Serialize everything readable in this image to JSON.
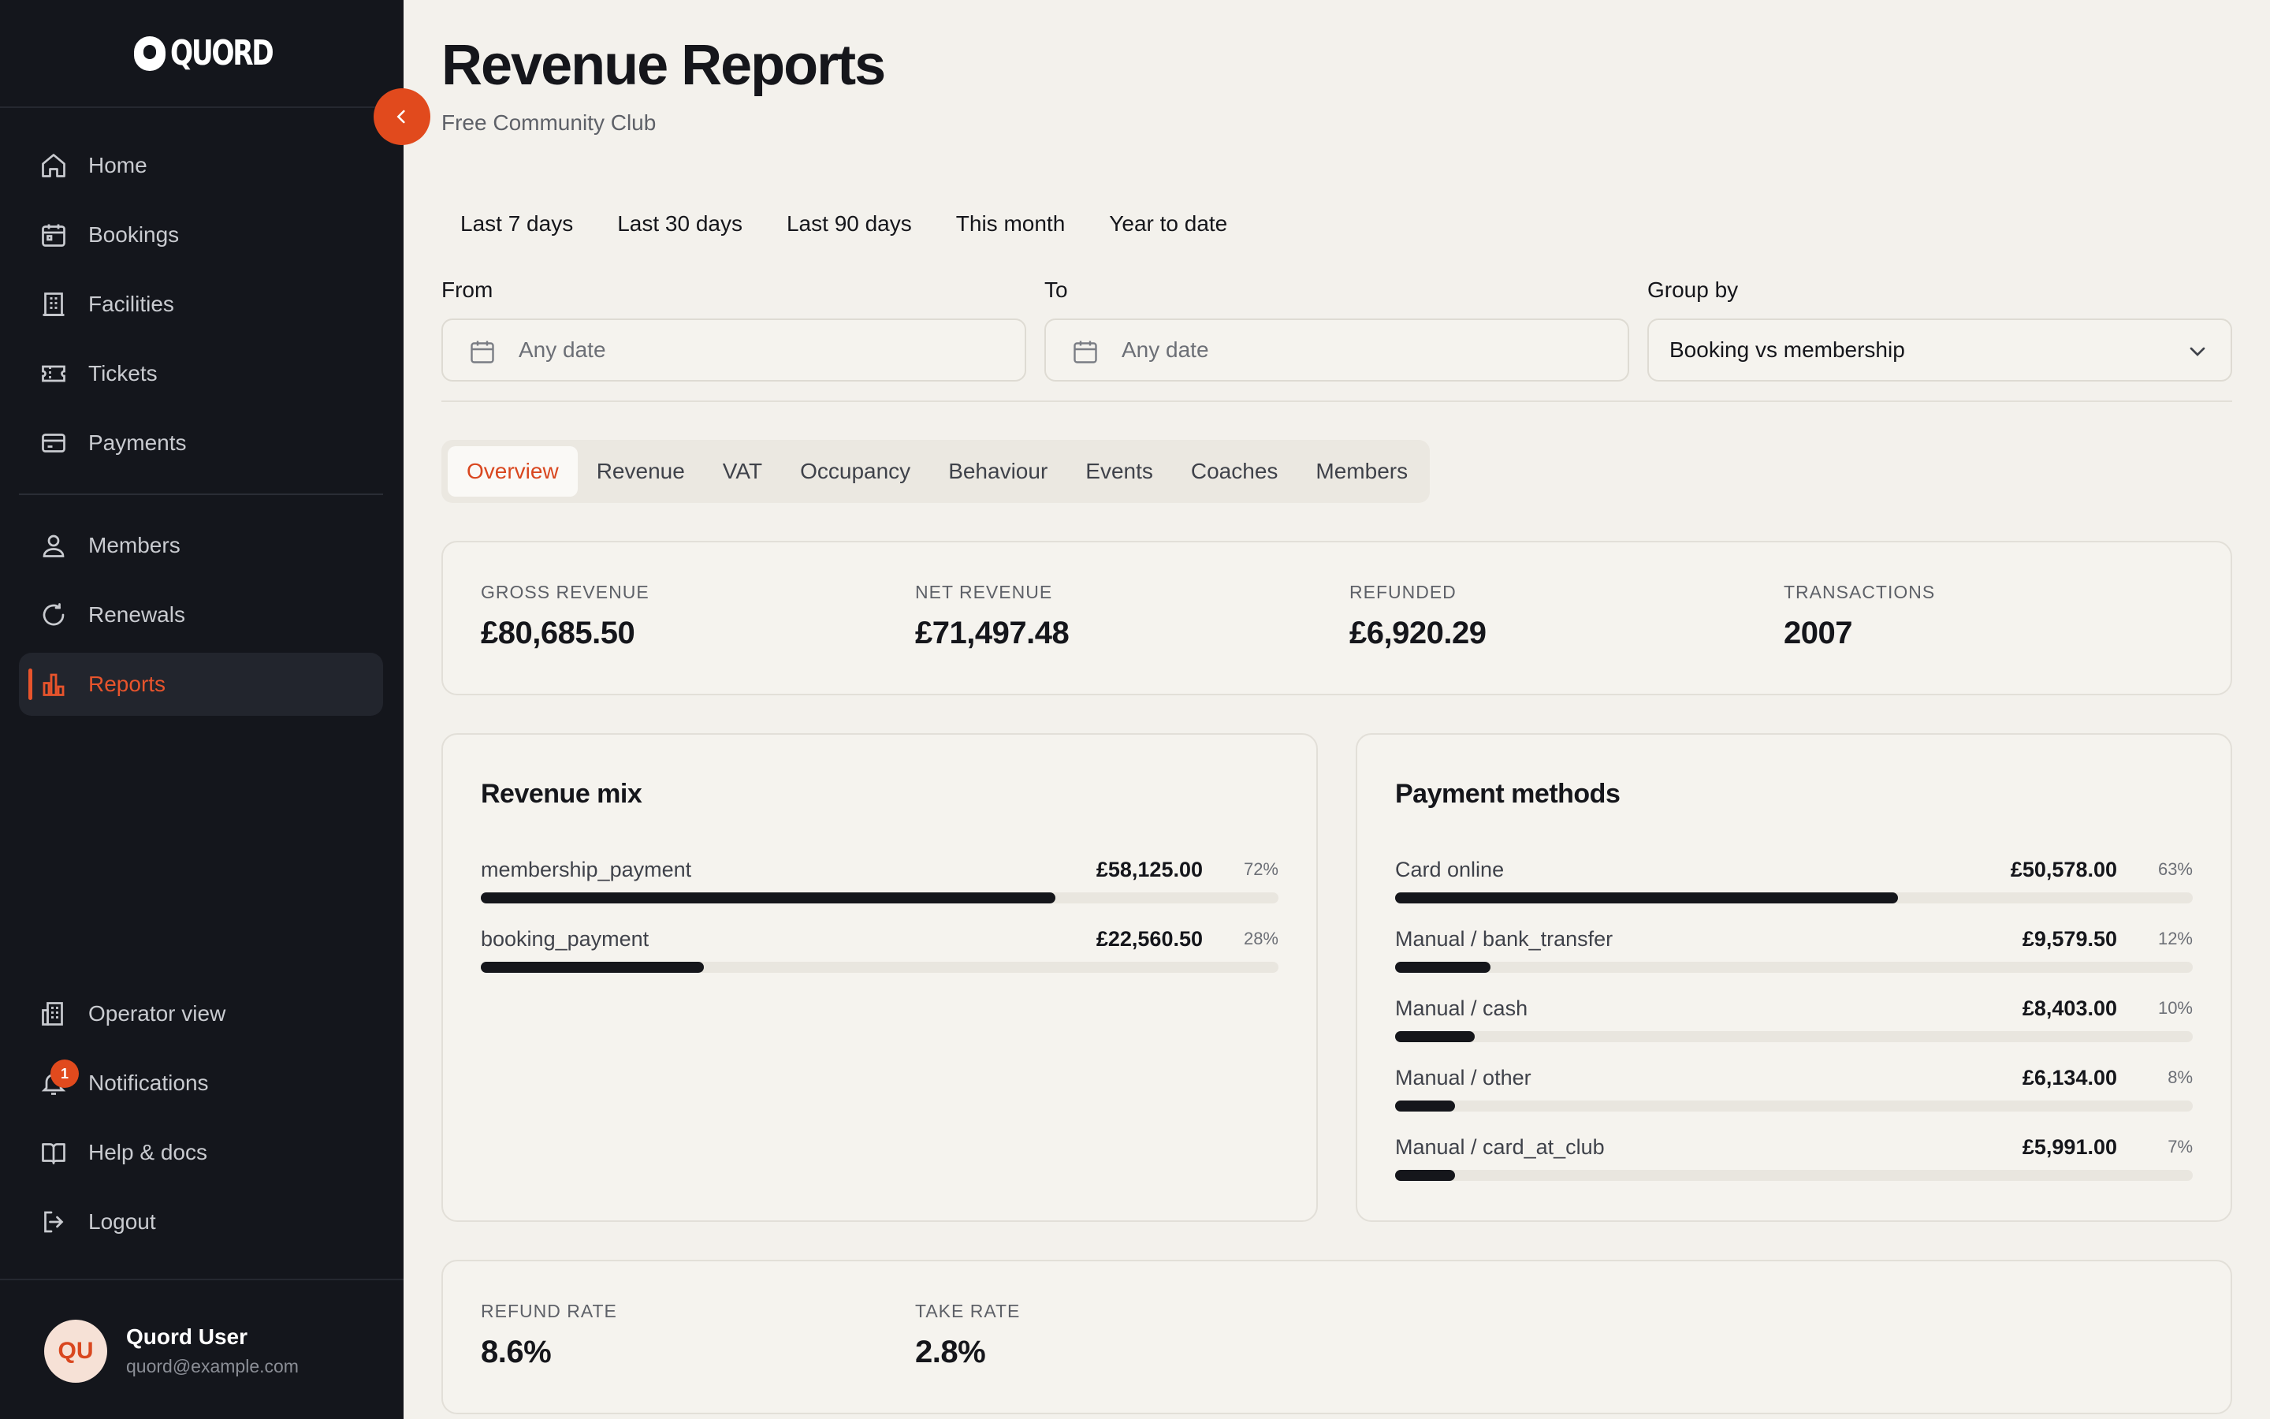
{
  "brand": {
    "logo_text": "QUORD"
  },
  "sidebar": {
    "items": [
      {
        "label": "Home",
        "icon": "home-icon"
      },
      {
        "label": "Bookings",
        "icon": "calendar-icon"
      },
      {
        "label": "Facilities",
        "icon": "building-icon"
      },
      {
        "label": "Tickets",
        "icon": "ticket-icon"
      },
      {
        "label": "Payments",
        "icon": "card-icon"
      },
      {
        "label": "Members",
        "icon": "users-icon"
      },
      {
        "label": "Renewals",
        "icon": "refresh-icon"
      },
      {
        "label": "Reports",
        "icon": "bar-chart-icon",
        "active": true
      }
    ],
    "footer_items": [
      {
        "label": "Operator view",
        "icon": "office-icon"
      },
      {
        "label": "Notifications",
        "icon": "bell-icon",
        "badge": "1"
      },
      {
        "label": "Help & docs",
        "icon": "book-icon"
      },
      {
        "label": "Logout",
        "icon": "logout-icon"
      }
    ],
    "user": {
      "initials": "QU",
      "name": "Quord User",
      "email": "quord@example.com"
    }
  },
  "header": {
    "title": "Revenue Reports",
    "subtitle": "Free Community Club"
  },
  "quick_ranges": [
    "Last 7 days",
    "Last 30 days",
    "Last 90 days",
    "This month",
    "Year to date"
  ],
  "filters": {
    "from": {
      "label": "From",
      "placeholder": "Any date"
    },
    "to": {
      "label": "To",
      "placeholder": "Any date"
    },
    "group_by": {
      "label": "Group by",
      "value": "Booking vs membership"
    }
  },
  "tabs": [
    "Overview",
    "Revenue",
    "VAT",
    "Occupancy",
    "Behaviour",
    "Events",
    "Coaches",
    "Members"
  ],
  "active_tab": "Overview",
  "summary": [
    {
      "label": "GROSS REVENUE",
      "value": "£80,685.50"
    },
    {
      "label": "NET REVENUE",
      "value": "£71,497.48"
    },
    {
      "label": "REFUNDED",
      "value": "£6,920.29"
    },
    {
      "label": "TRANSACTIONS",
      "value": "2007"
    }
  ],
  "revenue_mix": {
    "title": "Revenue mix",
    "rows": [
      {
        "name": "membership_payment",
        "amount": "£58,125.00",
        "pct": "72%",
        "fraction": 0.72
      },
      {
        "name": "booking_payment",
        "amount": "£22,560.50",
        "pct": "28%",
        "fraction": 0.28
      }
    ]
  },
  "payment_methods": {
    "title": "Payment methods",
    "rows": [
      {
        "name": "Card online",
        "amount": "£50,578.00",
        "pct": "63%",
        "fraction": 0.63
      },
      {
        "name": "Manual / bank_transfer",
        "amount": "£9,579.50",
        "pct": "12%",
        "fraction": 0.12
      },
      {
        "name": "Manual / cash",
        "amount": "£8,403.00",
        "pct": "10%",
        "fraction": 0.1
      },
      {
        "name": "Manual / other",
        "amount": "£6,134.00",
        "pct": "8%",
        "fraction": 0.075
      },
      {
        "name": "Manual / card_at_club",
        "amount": "£5,991.00",
        "pct": "7%",
        "fraction": 0.075
      }
    ]
  },
  "rates": [
    {
      "label": "REFUND RATE",
      "value": "8.6%"
    },
    {
      "label": "TAKE RATE",
      "value": "2.8%"
    }
  ],
  "colors": {
    "accent": "#e14a1d",
    "sidebar_bg": "#14161c",
    "page_bg": "#f3f1ec",
    "bar": "#15161b"
  }
}
